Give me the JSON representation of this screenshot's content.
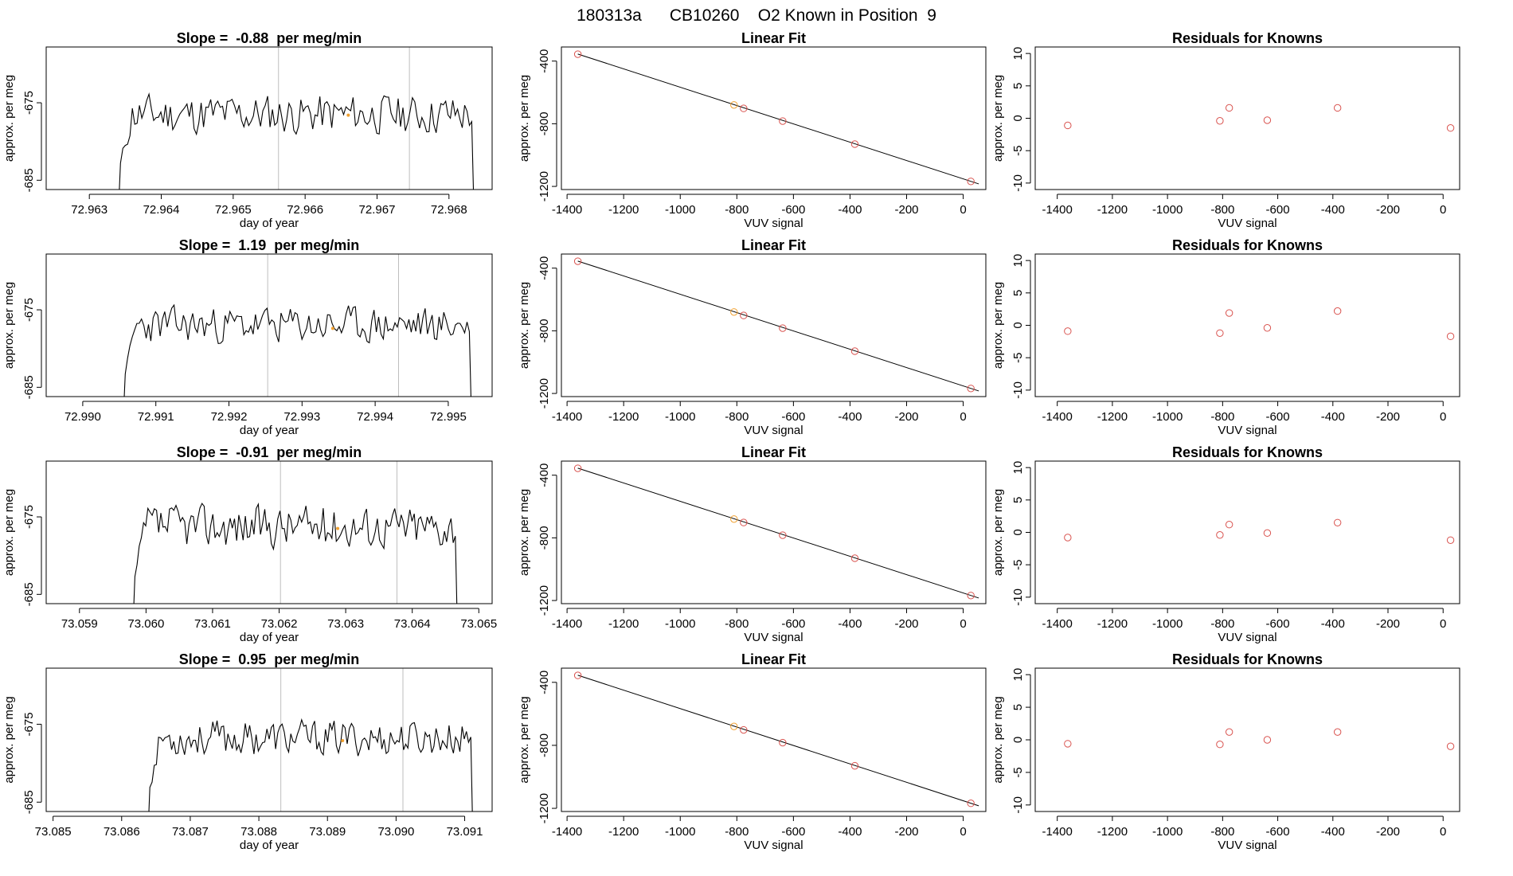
{
  "page_title": "180313a      CB10260    O2 Known in Position  9",
  "colors": {
    "frame": "#000000",
    "line": "#000000",
    "vline": "#bebebe",
    "point_red": "#d9534f",
    "point_orange": "#f0a030"
  },
  "common": {
    "ts_xlabel": "day of year",
    "ylabel": "approx. per meg",
    "fit_title": "Linear Fit",
    "fit_xlabel": "VUV signal",
    "res_title": "Residuals for Knowns",
    "res_xlabel": "VUV signal"
  },
  "chart_data": [
    {
      "type": "line",
      "role": "timeseries",
      "title": "Slope =  -0.88  per meg/min",
      "xlabel": "day of year",
      "ylabel": "approx. per meg",
      "xlim": [
        72.9624,
        72.9686
      ],
      "ylim": [
        -686.2,
        -667.8
      ],
      "xticks": [
        72.963,
        72.964,
        72.965,
        72.966,
        72.967,
        72.968
      ],
      "xtick_labels": [
        "72.963",
        "72.964",
        "72.965",
        "72.966",
        "72.967",
        "72.968"
      ],
      "yticks": [
        -685,
        -675
      ],
      "ytick_labels": [
        "-685",
        "-675"
      ],
      "start": 72.9634,
      "end": 72.96835,
      "level": -676.5,
      "amp": 3.2,
      "seed": 11,
      "vlines": [
        72.96563,
        72.96745
      ],
      "marker": {
        "x": 72.9666,
        "y": -676.6
      }
    },
    {
      "type": "scatter",
      "role": "fit",
      "title": "Linear Fit",
      "xlabel": "VUV signal",
      "ylabel": "approx. per meg",
      "xlim": [
        -1420,
        80
      ],
      "ylim": [
        -1220,
        -310
      ],
      "xticks": [
        -1400,
        -1200,
        -1000,
        -800,
        -600,
        -400,
        -200,
        0
      ],
      "xtick_labels": [
        "-1400",
        "-1200",
        "-1000",
        "-800",
        "-600",
        "-400",
        "-200",
        "0"
      ],
      "yticks": [
        -400,
        -800,
        -1200
      ],
      "ytick_labels": [
        "-400",
        "-800",
        "-1200"
      ],
      "points_x": [
        -1362,
        -810,
        -776,
        -638,
        -383,
        27
      ],
      "points_y": [
        -356,
        -680,
        -702,
        -783,
        -930,
        -1168
      ],
      "orange_index": 1,
      "line": {
        "x": [
          -1362,
          55
        ],
        "y": [
          -355,
          -1184
        ]
      }
    },
    {
      "type": "scatter",
      "role": "residuals",
      "title": "Residuals for Knowns",
      "xlabel": "VUV signal",
      "ylabel": "approx. per meg",
      "xlim": [
        -1480,
        60
      ],
      "ylim": [
        -11,
        11
      ],
      "xticks": [
        -1400,
        -1200,
        -1000,
        -800,
        -600,
        -400,
        -200,
        0
      ],
      "xtick_labels": [
        "-1400",
        "-1200",
        "-1000",
        "-800",
        "-600",
        "-400",
        "-200",
        "0"
      ],
      "yticks": [
        10,
        5,
        0,
        -5,
        -10
      ],
      "ytick_labels": [
        "10",
        "5",
        "0",
        "-5",
        "-10"
      ],
      "points_x": [
        -1362,
        -810,
        -776,
        -638,
        -383,
        27
      ],
      "points_y": [
        -1.1,
        -0.4,
        1.6,
        -0.3,
        1.6,
        -1.5
      ]
    },
    {
      "type": "line",
      "role": "timeseries",
      "title": "Slope =  1.19  per meg/min",
      "xlabel": "day of year",
      "ylabel": "approx. per meg",
      "xlim": [
        72.9895,
        72.9956
      ],
      "ylim": [
        -686.2,
        -667.8
      ],
      "xticks": [
        72.99,
        72.991,
        72.992,
        72.993,
        72.994,
        72.995
      ],
      "xtick_labels": [
        "72.990",
        "72.991",
        "72.992",
        "72.993",
        "72.994",
        "72.995"
      ],
      "yticks": [
        -685,
        -675
      ],
      "ytick_labels": [
        "-685",
        "-675"
      ],
      "start": 72.99055,
      "end": 72.99532,
      "level": -677.0,
      "amp": 2.9,
      "seed": 23,
      "vlines": [
        72.99253,
        72.99432
      ],
      "marker": {
        "x": 72.99342,
        "y": -677.4
      }
    },
    {
      "type": "scatter",
      "role": "fit",
      "title": "Linear Fit",
      "xlabel": "VUV signal",
      "ylabel": "approx. per meg",
      "xlim": [
        -1420,
        80
      ],
      "ylim": [
        -1220,
        -310
      ],
      "xticks": [
        -1400,
        -1200,
        -1000,
        -800,
        -600,
        -400,
        -200,
        0
      ],
      "xtick_labels": [
        "-1400",
        "-1200",
        "-1000",
        "-800",
        "-600",
        "-400",
        "-200",
        "0"
      ],
      "yticks": [
        -400,
        -800,
        -1200
      ],
      "ytick_labels": [
        "-400",
        "-800",
        "-1200"
      ],
      "points_x": [
        -1362,
        -810,
        -776,
        -638,
        -383,
        27
      ],
      "points_y": [
        -356,
        -680,
        -702,
        -783,
        -930,
        -1168
      ],
      "orange_index": 1,
      "line": {
        "x": [
          -1362,
          55
        ],
        "y": [
          -355,
          -1184
        ]
      }
    },
    {
      "type": "scatter",
      "role": "residuals",
      "title": "Residuals for Knowns",
      "xlabel": "VUV signal",
      "ylabel": "approx. per meg",
      "xlim": [
        -1480,
        60
      ],
      "ylim": [
        -11,
        11
      ],
      "xticks": [
        -1400,
        -1200,
        -1000,
        -800,
        -600,
        -400,
        -200,
        0
      ],
      "xtick_labels": [
        "-1400",
        "-1200",
        "-1000",
        "-800",
        "-600",
        "-400",
        "-200",
        "0"
      ],
      "yticks": [
        10,
        5,
        0,
        -5,
        -10
      ],
      "ytick_labels": [
        "10",
        "5",
        "0",
        "-5",
        "-10"
      ],
      "points_x": [
        -1362,
        -810,
        -776,
        -638,
        -383,
        27
      ],
      "points_y": [
        -0.9,
        -1.2,
        1.9,
        -0.4,
        2.2,
        -1.7
      ]
    },
    {
      "type": "line",
      "role": "timeseries",
      "title": "Slope =  -0.91  per meg/min",
      "xlabel": "day of year",
      "ylabel": "approx. per meg",
      "xlim": [
        73.0585,
        73.0652
      ],
      "ylim": [
        -686.2,
        -667.8
      ],
      "xticks": [
        73.059,
        73.06,
        73.061,
        73.062,
        73.063,
        73.064,
        73.065
      ],
      "xtick_labels": [
        "73.059",
        "73.060",
        "73.061",
        "73.062",
        "73.063",
        "73.064",
        "73.065"
      ],
      "yticks": [
        -685,
        -675
      ],
      "ytick_labels": [
        "-685",
        "-675"
      ],
      "start": 73.0598,
      "end": 73.06468,
      "level": -676.2,
      "amp": 3.4,
      "seed": 37,
      "vlines": [
        73.06202,
        73.06377
      ],
      "marker": {
        "x": 73.06288,
        "y": -676.5
      }
    },
    {
      "type": "scatter",
      "role": "fit",
      "title": "Linear Fit",
      "xlabel": "VUV signal",
      "ylabel": "approx. per meg",
      "xlim": [
        -1420,
        80
      ],
      "ylim": [
        -1220,
        -310
      ],
      "xticks": [
        -1400,
        -1200,
        -1000,
        -800,
        -600,
        -400,
        -200,
        0
      ],
      "xtick_labels": [
        "-1400",
        "-1200",
        "-1000",
        "-800",
        "-600",
        "-400",
        "-200",
        "0"
      ],
      "yticks": [
        -400,
        -800,
        -1200
      ],
      "ytick_labels": [
        "-400",
        "-800",
        "-1200"
      ],
      "points_x": [
        -1362,
        -810,
        -776,
        -638,
        -383,
        27
      ],
      "points_y": [
        -356,
        -680,
        -702,
        -783,
        -930,
        -1168
      ],
      "orange_index": 1,
      "line": {
        "x": [
          -1362,
          55
        ],
        "y": [
          -355,
          -1184
        ]
      }
    },
    {
      "type": "scatter",
      "role": "residuals",
      "title": "Residuals for Knowns",
      "xlabel": "VUV signal",
      "ylabel": "approx. per meg",
      "xlim": [
        -1480,
        60
      ],
      "ylim": [
        -11,
        11
      ],
      "xticks": [
        -1400,
        -1200,
        -1000,
        -800,
        -600,
        -400,
        -200,
        0
      ],
      "xtick_labels": [
        "-1400",
        "-1200",
        "-1000",
        "-800",
        "-600",
        "-400",
        "-200",
        "0"
      ],
      "yticks": [
        10,
        5,
        0,
        -5,
        -10
      ],
      "ytick_labels": [
        "10",
        "5",
        "0",
        "-5",
        "-10"
      ],
      "points_x": [
        -1362,
        -810,
        -776,
        -638,
        -383,
        27
      ],
      "points_y": [
        -0.8,
        -0.4,
        1.2,
        -0.1,
        1.5,
        -1.2
      ]
    },
    {
      "type": "line",
      "role": "timeseries",
      "title": "Slope =  0.95  per meg/min",
      "xlabel": "day of year",
      "ylabel": "approx. per meg",
      "xlim": [
        73.0849,
        73.0914
      ],
      "ylim": [
        -686.2,
        -667.8
      ],
      "xticks": [
        73.085,
        73.086,
        73.087,
        73.088,
        73.089,
        73.09,
        73.091
      ],
      "xtick_labels": [
        "73.085",
        "73.086",
        "73.087",
        "73.088",
        "73.089",
        "73.090",
        "73.091"
      ],
      "yticks": [
        -685,
        -675
      ],
      "ytick_labels": [
        "-685",
        "-675"
      ],
      "start": 73.08638,
      "end": 73.09112,
      "level": -676.8,
      "amp": 2.8,
      "seed": 53,
      "vlines": [
        73.08832,
        73.0901
      ],
      "marker": {
        "x": 73.08922,
        "y": -677.1
      }
    },
    {
      "type": "scatter",
      "role": "fit",
      "title": "Linear Fit",
      "xlabel": "VUV signal",
      "ylabel": "approx. per meg",
      "xlim": [
        -1420,
        80
      ],
      "ylim": [
        -1220,
        -310
      ],
      "xticks": [
        -1400,
        -1200,
        -1000,
        -800,
        -600,
        -400,
        -200,
        0
      ],
      "xtick_labels": [
        "-1400",
        "-1200",
        "-1000",
        "-800",
        "-600",
        "-400",
        "-200",
        "0"
      ],
      "yticks": [
        -400,
        -800,
        -1200
      ],
      "ytick_labels": [
        "-400",
        "-800",
        "-1200"
      ],
      "points_x": [
        -1362,
        -810,
        -776,
        -638,
        -383,
        27
      ],
      "points_y": [
        -356,
        -680,
        -702,
        -783,
        -930,
        -1168
      ],
      "orange_index": 1,
      "line": {
        "x": [
          -1362,
          55
        ],
        "y": [
          -355,
          -1184
        ]
      }
    },
    {
      "type": "scatter",
      "role": "residuals",
      "title": "Residuals for Knowns",
      "xlabel": "VUV signal",
      "ylabel": "approx. per meg",
      "xlim": [
        -1480,
        60
      ],
      "ylim": [
        -11,
        11
      ],
      "xticks": [
        -1400,
        -1200,
        -1000,
        -800,
        -600,
        -400,
        -200,
        0
      ],
      "xtick_labels": [
        "-1400",
        "-1200",
        "-1000",
        "-800",
        "-600",
        "-400",
        "-200",
        "0"
      ],
      "yticks": [
        10,
        5,
        0,
        -5,
        -10
      ],
      "ytick_labels": [
        "10",
        "5",
        "0",
        "-5",
        "-10"
      ],
      "points_x": [
        -1362,
        -810,
        -776,
        -638,
        -383,
        27
      ],
      "points_y": [
        -0.6,
        -0.7,
        1.2,
        0.0,
        1.2,
        -1.0
      ]
    }
  ]
}
